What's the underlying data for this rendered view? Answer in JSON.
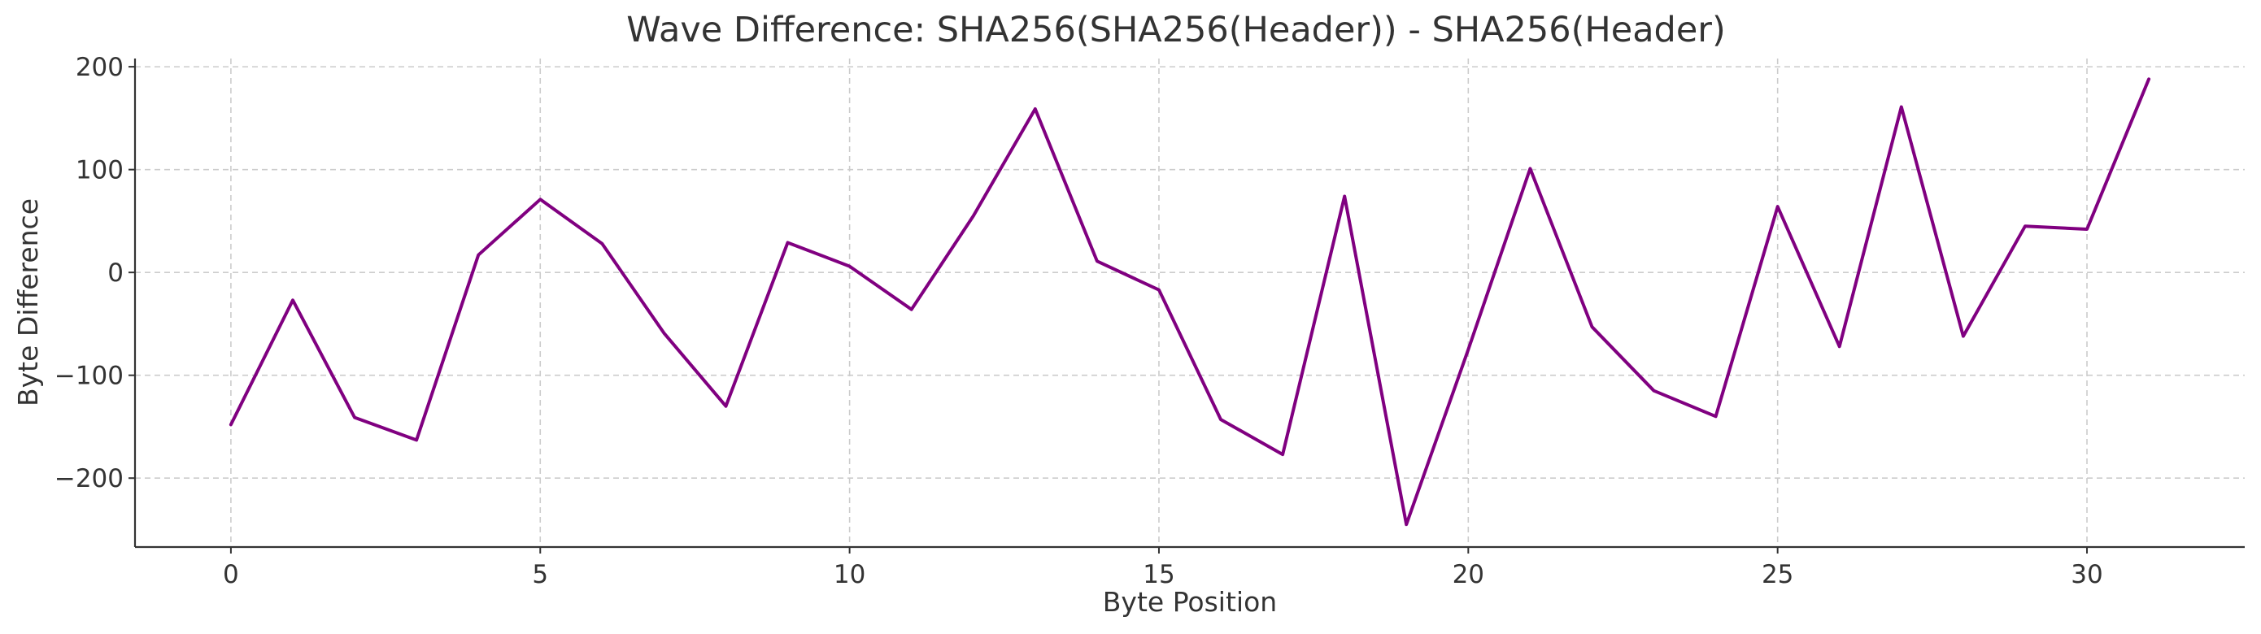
{
  "chart_data": {
    "type": "line",
    "title": "Wave Difference: SHA256(SHA256(Header)) - SHA256(Header)",
    "xlabel": "Byte Position",
    "ylabel": "Byte Difference",
    "xlim": [
      -1.55,
      32.55
    ],
    "ylim": [
      -267,
      208
    ],
    "xticks": [
      0,
      5,
      10,
      15,
      20,
      25,
      30
    ],
    "xtick_labels": [
      "0",
      "5",
      "10",
      "15",
      "20",
      "25",
      "30"
    ],
    "yticks": [
      -200,
      -100,
      0,
      100,
      200
    ],
    "ytick_labels": [
      "−200",
      "−100",
      "0",
      "100",
      "200"
    ],
    "grid": true,
    "legend": "none",
    "x": [
      0,
      1,
      2,
      3,
      4,
      5,
      6,
      7,
      8,
      9,
      10,
      11,
      12,
      13,
      14,
      15,
      16,
      17,
      18,
      19,
      20,
      21,
      22,
      23,
      24,
      25,
      26,
      27,
      28,
      29,
      30,
      31
    ],
    "series": [
      {
        "color": "#800080",
        "values": [
          -148,
          -27,
          -141,
          -163,
          17,
          71,
          28,
          -59,
          -130,
          29,
          6,
          -36,
          55,
          159,
          11,
          -17,
          -143,
          -177,
          74,
          -245,
          -75,
          101,
          -53,
          -115,
          -140,
          64,
          -72,
          161,
          -62,
          45,
          42,
          188
        ]
      }
    ]
  }
}
